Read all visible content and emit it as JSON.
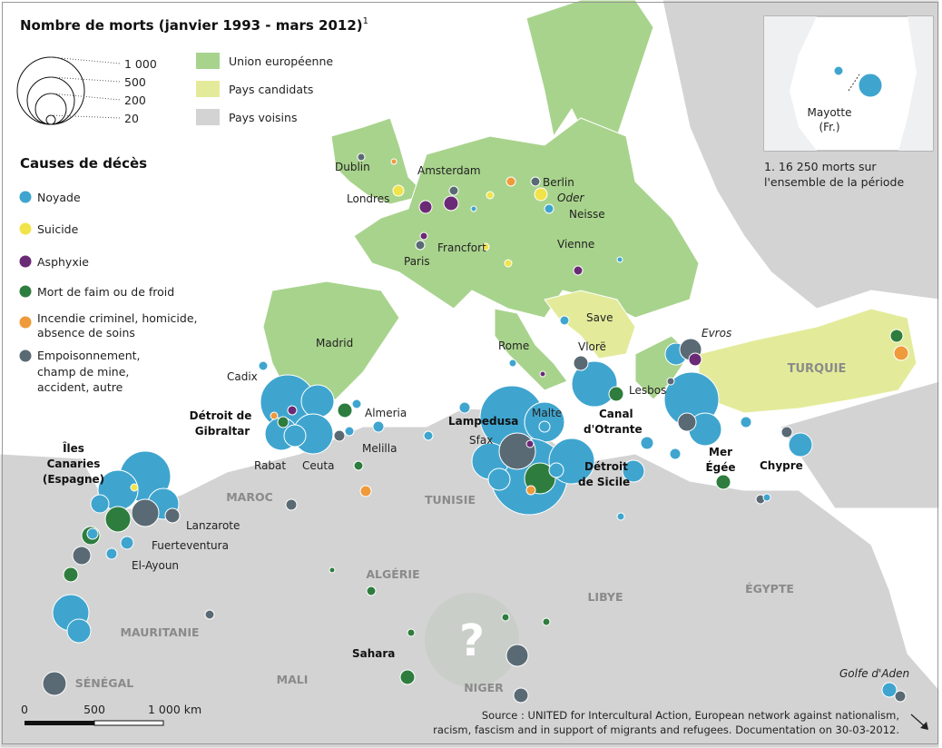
{
  "title": "Nombre de morts (janvier 1993 - mars 2012)",
  "title_note": "1",
  "size_legend": [
    "1 000",
    "500",
    "200",
    "20"
  ],
  "zones": [
    {
      "label": "Union européenne",
      "color": "#a8d38c"
    },
    {
      "label": "Pays candidats",
      "color": "#e3eb9a"
    },
    {
      "label": "Pays voisins",
      "color": "#d3d3d3"
    }
  ],
  "causes_title": "Causes de décès",
  "causes": [
    {
      "lines": [
        "Noyade"
      ],
      "color": "#3fa5cf"
    },
    {
      "lines": [
        "Suicide"
      ],
      "color": "#f1e34a"
    },
    {
      "lines": [
        "Asphyxie"
      ],
      "color": "#6b2a76"
    },
    {
      "lines": [
        "Mort de faim ou de froid"
      ],
      "color": "#2e7d3e"
    },
    {
      "lines": [
        "Incendie criminel, homicide,",
        "absence de soins"
      ],
      "color": "#ef9a3b"
    },
    {
      "lines": [
        "Empoisonnement,",
        "champ de mine,",
        "accident, autre"
      ],
      "color": "#5a6a74"
    }
  ],
  "inset": {
    "label1": "Mayotte",
    "label2": "(Fr.)"
  },
  "footnote": [
    "1. 16 250 morts sur",
    "l'ensemble de la période"
  ],
  "places": {
    "dublin": "Dublin",
    "amsterdam": "Amsterdam",
    "berlin": "Berlin",
    "oder": "Oder",
    "londres": "Londres",
    "neisse": "Neisse",
    "francfort": "Francfort",
    "paris": "Paris",
    "vienne": "Vienne",
    "save": "Save",
    "madrid": "Madrid",
    "rome": "Rome",
    "vlore": "Vlorë",
    "evros": "Evros",
    "cadix": "Cadix",
    "lesbos": "Lesbos",
    "almeria": "Almeria",
    "melilla": "Melilla",
    "rabat": "Rabat",
    "ceuta": "Ceuta",
    "lampedusa": "Lampedusa",
    "malte": "Malte",
    "sfax": "Sfax",
    "lanzarote": "Lanzarote",
    "fuerteventura": "Fuerteventura",
    "elayoun": "El-Ayoun",
    "sahara": "Sahara",
    "golfe": "Golfe d'Aden"
  },
  "bold_places": {
    "gibraltar": [
      "Détroit de",
      "Gibraltar"
    ],
    "canaries": [
      "Îles",
      "Canaries",
      "(Espagne)"
    ],
    "otrante": [
      "Canal",
      "d'Otrante"
    ],
    "sicile": [
      "Détroit",
      "de Sicile"
    ],
    "egee": [
      "Mer",
      "Égée"
    ],
    "chypre": "Chypre"
  },
  "countries": {
    "turquie": "TURQUIE",
    "maroc": "MAROC",
    "tunisie": "TUNISIE",
    "algerie": "ALGÉRIE",
    "libye": "LIBYE",
    "egypte": "ÉGYPTE",
    "mauritanie": "MAURITANIE",
    "senegal": "SÉNÉGAL",
    "mali": "MALI",
    "niger": "NIGER"
  },
  "unknown_mark": "?",
  "scale": {
    "zero": "0",
    "mid": "500",
    "end": "1 000 km"
  },
  "source": [
    "Source : UNITED for Intercultural Action, European network against nationalism,",
    "racism, fascism and in support of migrants and refugees. Documentation on 30-03-2012."
  ]
}
